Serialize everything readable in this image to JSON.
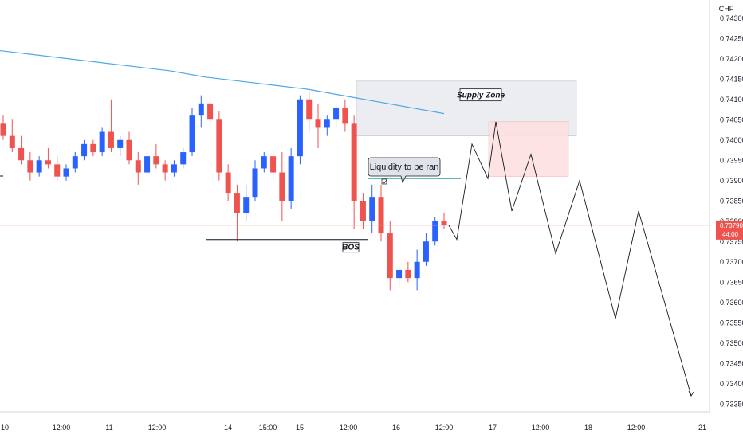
{
  "chart_data": {
    "type": "candlestick",
    "currency": "CHF",
    "y_range": [
      0.73325,
      0.74325
    ],
    "y_ticks": [
      "0.74300",
      "0.74250",
      "0.74200",
      "0.74150",
      "0.74100",
      "0.74050",
      "0.74000",
      "0.73950",
      "0.73900",
      "0.73850",
      "0.73800",
      "0.73750",
      "0.73700",
      "0.73650",
      "0.73600",
      "0.73550",
      "0.73500",
      "0.73450",
      "0.73400",
      "0.73350"
    ],
    "x_ticks": [
      "10",
      "12:00",
      "11",
      "12:00",
      "14",
      "15:00",
      "15",
      "12:00",
      "16",
      "12:00",
      "17",
      "12:00",
      "18",
      "12:00",
      "21"
    ],
    "current_price": {
      "value": "0.73790",
      "countdown": "44:00"
    },
    "moving_average": [
      0.7422,
      0.7421,
      0.742,
      0.7419,
      0.7418,
      0.7417,
      0.74155,
      0.74145,
      0.74135,
      0.74125,
      0.7411,
      0.74095,
      0.7408,
      0.74065
    ],
    "candles": [
      [
        0.7404,
        0.7406,
        0.74,
        0.7401
      ],
      [
        0.7401,
        0.7405,
        0.7397,
        0.7398
      ],
      [
        0.7398,
        0.7401,
        0.7394,
        0.7395
      ],
      [
        0.7395,
        0.7397,
        0.739,
        0.7392
      ],
      [
        0.7392,
        0.7396,
        0.7391,
        0.7395
      ],
      [
        0.7395,
        0.7398,
        0.7393,
        0.7394
      ],
      [
        0.7394,
        0.7396,
        0.739,
        0.7391
      ],
      [
        0.7391,
        0.7394,
        0.739,
        0.7393
      ],
      [
        0.7393,
        0.7397,
        0.7392,
        0.7396
      ],
      [
        0.7396,
        0.74,
        0.7395,
        0.7399
      ],
      [
        0.7399,
        0.74,
        0.7396,
        0.7397
      ],
      [
        0.7397,
        0.7403,
        0.7396,
        0.7402
      ],
      [
        0.7402,
        0.741,
        0.7397,
        0.7398
      ],
      [
        0.7398,
        0.7401,
        0.7396,
        0.74
      ],
      [
        0.74,
        0.7402,
        0.7394,
        0.7395
      ],
      [
        0.7395,
        0.7397,
        0.7389,
        0.7392
      ],
      [
        0.7392,
        0.7397,
        0.7391,
        0.7396
      ],
      [
        0.7396,
        0.7399,
        0.7393,
        0.7394
      ],
      [
        0.7394,
        0.7395,
        0.739,
        0.7392
      ],
      [
        0.7392,
        0.7395,
        0.7391,
        0.7394
      ],
      [
        0.7394,
        0.7398,
        0.7393,
        0.7397
      ],
      [
        0.7397,
        0.7408,
        0.7396,
        0.7406
      ],
      [
        0.7406,
        0.7411,
        0.7403,
        0.7409
      ],
      [
        0.7409,
        0.7411,
        0.7403,
        0.7405
      ],
      [
        0.7405,
        0.7407,
        0.739,
        0.7392
      ],
      [
        0.7392,
        0.7394,
        0.7385,
        0.7387
      ],
      [
        0.7387,
        0.7389,
        0.7375,
        0.7382
      ],
      [
        0.7382,
        0.7389,
        0.738,
        0.7386
      ],
      [
        0.7386,
        0.7395,
        0.7385,
        0.7393
      ],
      [
        0.7393,
        0.7397,
        0.7392,
        0.7396
      ],
      [
        0.7396,
        0.7398,
        0.739,
        0.7392
      ],
      [
        0.7392,
        0.7397,
        0.738,
        0.7385
      ],
      [
        0.7385,
        0.7398,
        0.7383,
        0.7396
      ],
      [
        0.7396,
        0.7411,
        0.7394,
        0.741
      ],
      [
        0.741,
        0.7412,
        0.7402,
        0.7405
      ],
      [
        0.7405,
        0.7409,
        0.7398,
        0.7403
      ],
      [
        0.7403,
        0.7406,
        0.7401,
        0.7405
      ],
      [
        0.7405,
        0.7409,
        0.7403,
        0.7408
      ],
      [
        0.7408,
        0.741,
        0.7402,
        0.7404
      ],
      [
        0.7404,
        0.7406,
        0.7378,
        0.7385
      ],
      [
        0.7385,
        0.7387,
        0.7378,
        0.738
      ],
      [
        0.738,
        0.7389,
        0.7377,
        0.7386
      ],
      [
        0.7386,
        0.7389,
        0.7375,
        0.7377
      ],
      [
        0.7377,
        0.738,
        0.7363,
        0.7366
      ],
      [
        0.7366,
        0.7369,
        0.7364,
        0.7368
      ],
      [
        0.7368,
        0.737,
        0.7365,
        0.7366
      ],
      [
        0.7366,
        0.7373,
        0.7363,
        0.737
      ],
      [
        0.737,
        0.7377,
        0.7369,
        0.7375
      ],
      [
        0.7375,
        0.7381,
        0.7374,
        0.738
      ],
      [
        0.738,
        0.7382,
        0.7378,
        0.7379
      ]
    ],
    "bos_level": 0.73755,
    "liquidity_level": 0.73905,
    "annotations": {
      "supply_zone": "Supply Zone",
      "liquidity": "Liquidity to be ran",
      "bos": "BOS"
    },
    "projection_path": [
      [
        0.738,
        0.7376
      ],
      [
        0.738,
        0.7399
      ],
      [
        0.738,
        0.73905
      ],
      [
        0.738,
        0.7404
      ],
      [
        0.738,
        0.73825
      ],
      [
        0.738,
        0.73965
      ],
      [
        0.738,
        0.7372
      ],
      [
        0.738,
        0.739
      ],
      [
        0.738,
        0.7356
      ],
      [
        0.738,
        0.73825
      ],
      [
        0.738,
        0.7337
      ]
    ],
    "colors": {
      "up": "#2962ff",
      "down": "#ef5350",
      "ma": "#4fa8e6",
      "liquidity_line": "#26a69a",
      "grid": "#e0e3eb",
      "current_price": "#ef5350"
    }
  }
}
